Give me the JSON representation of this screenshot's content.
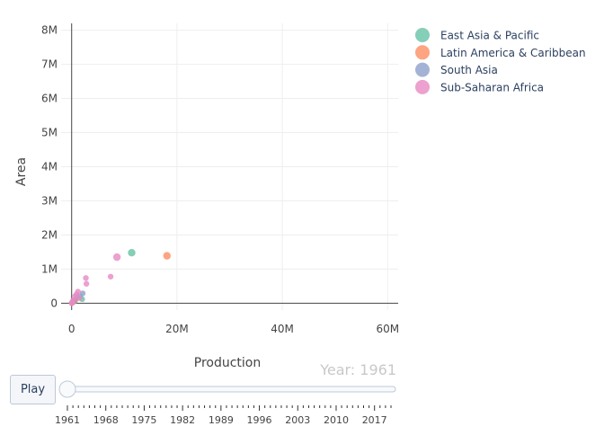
{
  "chart_data": {
    "type": "scatter",
    "title": "",
    "xlabel": "Production",
    "ylabel": "Area",
    "xlim": [
      -2000000,
      62000000
    ],
    "ylim": [
      -200000,
      8200000
    ],
    "x_ticks": [
      0,
      20000000,
      40000000,
      60000000
    ],
    "x_tick_labels": [
      "0",
      "20M",
      "40M",
      "60M"
    ],
    "y_ticks": [
      0,
      1000000,
      2000000,
      3000000,
      4000000,
      5000000,
      6000000,
      7000000,
      8000000
    ],
    "y_tick_labels": [
      "0",
      "1M",
      "2M",
      "3M",
      "4M",
      "5M",
      "6M",
      "7M",
      "8M"
    ],
    "grid": true,
    "legend_position": "right",
    "series": [
      {
        "name": "East Asia & Pacific",
        "color": "#66c2a5",
        "points": [
          {
            "x": 11400000,
            "y": 1480000
          },
          {
            "x": 1600000,
            "y": 200000
          },
          {
            "x": 2000000,
            "y": 120000
          },
          {
            "x": 600000,
            "y": 60000
          },
          {
            "x": 200000,
            "y": 20000
          }
        ]
      },
      {
        "name": "Latin America & Caribbean",
        "color": "#fc8d62",
        "points": [
          {
            "x": 18100000,
            "y": 1390000
          },
          {
            "x": 700000,
            "y": 90000
          },
          {
            "x": 300000,
            "y": 40000
          },
          {
            "x": 100000,
            "y": 15000
          }
        ]
      },
      {
        "name": "South Asia",
        "color": "#8da0cb",
        "points": [
          {
            "x": 2100000,
            "y": 290000
          },
          {
            "x": 1000000,
            "y": 170000
          },
          {
            "x": 400000,
            "y": 70000
          }
        ]
      },
      {
        "name": "Sub-Saharan Africa",
        "color": "#e78ac3",
        "points": [
          {
            "x": 8600000,
            "y": 1350000
          },
          {
            "x": 7400000,
            "y": 780000
          },
          {
            "x": 2700000,
            "y": 740000
          },
          {
            "x": 2800000,
            "y": 570000
          },
          {
            "x": 1200000,
            "y": 340000
          },
          {
            "x": 900000,
            "y": 260000
          },
          {
            "x": 600000,
            "y": 200000
          },
          {
            "x": 1500000,
            "y": 150000
          },
          {
            "x": 300000,
            "y": 90000
          },
          {
            "x": 100000,
            "y": 30000
          },
          {
            "x": 0,
            "y": 0
          }
        ]
      }
    ],
    "animation": {
      "current_label": "Year: 1961",
      "play_label": "Play",
      "slider_value": 1961,
      "slider_range": [
        1961,
        2020
      ],
      "slider_tick_labels": [
        "1961",
        "1968",
        "1975",
        "1982",
        "1989",
        "1996",
        "2003",
        "2010",
        "2017"
      ]
    }
  }
}
